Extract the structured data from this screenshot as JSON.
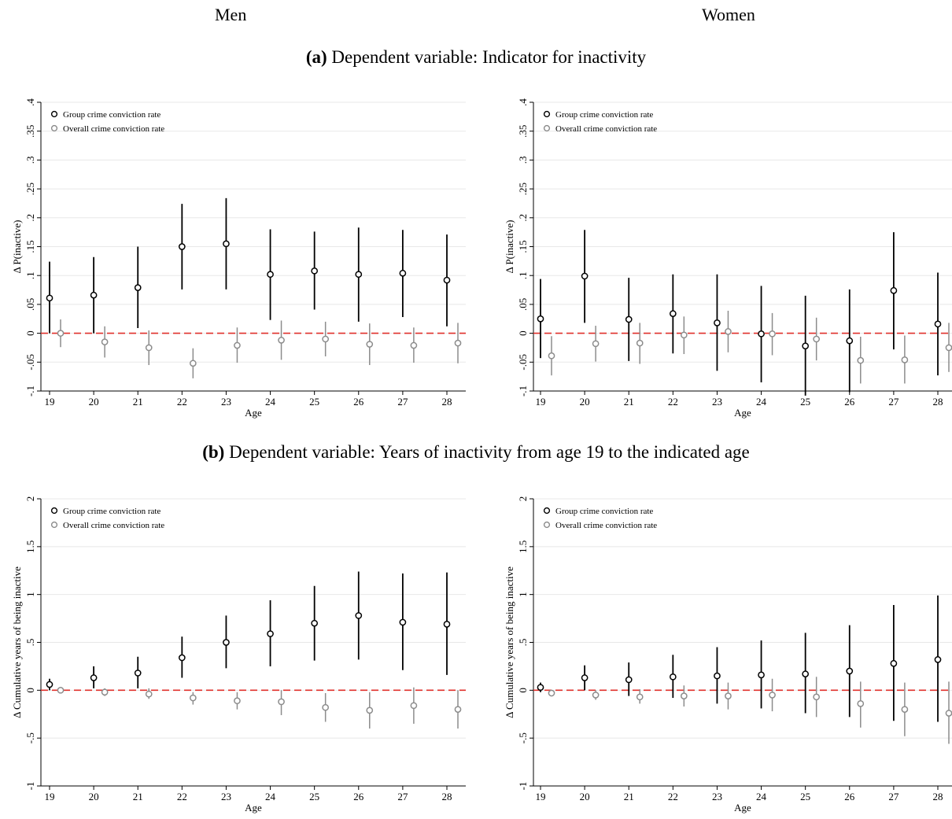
{
  "headers": {
    "men": "Men",
    "women": "Women"
  },
  "panels": {
    "a": {
      "letter": "(a)",
      "text": "Dependent variable: Indicator for inactivity"
    },
    "b": {
      "letter": "(b)",
      "text": "Dependent variable: Years of inactivity from age 19 to the indicated age"
    }
  },
  "colors": {
    "group": "#000000",
    "overall": "#8c8c8c",
    "zero_line": "#e0302b",
    "grid": "#e8e8e8"
  },
  "chart_data": [
    {
      "id": "a-men",
      "type": "scatter",
      "ylabel": "Δ P(inactive)",
      "xlabel": "Age",
      "x": [
        19,
        20,
        21,
        22,
        23,
        24,
        25,
        26,
        27,
        28
      ],
      "ylim": [
        -0.1,
        0.4
      ],
      "yticks": [
        -0.1,
        -0.05,
        0,
        0.05,
        0.1,
        0.15,
        0.2,
        0.25,
        0.3,
        0.35,
        0.4
      ],
      "ytick_labels": [
        "-.1",
        "-.05",
        "0",
        ".05",
        ".1",
        ".15",
        ".2",
        ".25",
        ".3",
        ".35",
        ".4"
      ],
      "legend_position": "top-left",
      "reference_line": 0,
      "series": [
        {
          "name": "Group crime conviction rate",
          "key": "group",
          "values": [
            0.061,
            0.066,
            0.079,
            0.15,
            0.155,
            0.102,
            0.108,
            0.102,
            0.104,
            0.092
          ],
          "ci_low": [
            0.0,
            0.0,
            0.009,
            0.076,
            0.076,
            0.023,
            0.041,
            0.02,
            0.028,
            0.012
          ],
          "ci_high": [
            0.124,
            0.132,
            0.15,
            0.224,
            0.234,
            0.18,
            0.176,
            0.183,
            0.179,
            0.171
          ]
        },
        {
          "name": "Overall crime conviction rate",
          "key": "overall",
          "values": [
            0.0,
            -0.015,
            -0.025,
            -0.052,
            -0.021,
            -0.012,
            -0.01,
            -0.019,
            -0.021,
            -0.017
          ],
          "ci_low": [
            -0.024,
            -0.042,
            -0.055,
            -0.078,
            -0.051,
            -0.046,
            -0.04,
            -0.055,
            -0.051,
            -0.052
          ],
          "ci_high": [
            0.024,
            0.012,
            0.005,
            -0.026,
            0.01,
            0.022,
            0.02,
            0.017,
            0.01,
            0.018
          ]
        }
      ]
    },
    {
      "id": "a-women",
      "type": "scatter",
      "ylabel": "Δ P(inactive)",
      "xlabel": "Age",
      "x": [
        19,
        20,
        21,
        22,
        23,
        24,
        25,
        26,
        27,
        28
      ],
      "ylim": [
        -0.1,
        0.4
      ],
      "yticks": [
        -0.1,
        -0.05,
        0,
        0.05,
        0.1,
        0.15,
        0.2,
        0.25,
        0.3,
        0.35,
        0.4
      ],
      "ytick_labels": [
        "-.1",
        "-.05",
        "0",
        ".05",
        ".1",
        ".15",
        ".2",
        ".25",
        ".3",
        ".35",
        ".4"
      ],
      "legend_position": "top-left",
      "reference_line": 0,
      "series": [
        {
          "name": "Group crime conviction rate",
          "key": "group",
          "values": [
            0.025,
            0.099,
            0.024,
            0.034,
            0.018,
            -0.001,
            -0.022,
            -0.013,
            0.074,
            0.016
          ],
          "ci_low": [
            -0.043,
            0.018,
            -0.048,
            -0.035,
            -0.065,
            -0.085,
            -0.108,
            -0.102,
            -0.028,
            -0.073
          ],
          "ci_high": [
            0.094,
            0.179,
            0.096,
            0.102,
            0.102,
            0.082,
            0.065,
            0.076,
            0.175,
            0.105
          ]
        },
        {
          "name": "Overall crime conviction rate",
          "key": "overall",
          "values": [
            -0.039,
            -0.018,
            -0.017,
            -0.003,
            0.003,
            -0.001,
            -0.01,
            -0.047,
            -0.046,
            -0.025
          ],
          "ci_low": [
            -0.073,
            -0.049,
            -0.053,
            -0.036,
            -0.033,
            -0.038,
            -0.047,
            -0.087,
            -0.087,
            -0.067
          ],
          "ci_high": [
            -0.005,
            0.013,
            0.018,
            0.029,
            0.039,
            0.035,
            0.027,
            -0.006,
            -0.004,
            0.018
          ]
        }
      ]
    },
    {
      "id": "b-men",
      "type": "scatter",
      "ylabel": "Δ Cumulative years of being inactive",
      "xlabel": "Age",
      "x": [
        19,
        20,
        21,
        22,
        23,
        24,
        25,
        26,
        27,
        28
      ],
      "ylim": [
        -1,
        2
      ],
      "yticks": [
        -1,
        -0.5,
        0,
        0.5,
        1,
        1.5,
        2
      ],
      "ytick_labels": [
        "-1",
        "-.5",
        "0",
        ".5",
        "1",
        "1.5",
        "2"
      ],
      "legend_position": "top-left",
      "reference_line": 0,
      "series": [
        {
          "name": "Group crime conviction rate",
          "key": "group",
          "values": [
            0.06,
            0.13,
            0.18,
            0.34,
            0.5,
            0.59,
            0.7,
            0.78,
            0.71,
            0.69
          ],
          "ci_low": [
            0.0,
            0.02,
            0.02,
            0.13,
            0.23,
            0.25,
            0.31,
            0.32,
            0.21,
            0.16
          ],
          "ci_high": [
            0.12,
            0.25,
            0.35,
            0.56,
            0.78,
            0.94,
            1.09,
            1.24,
            1.22,
            1.23
          ]
        },
        {
          "name": "Overall crime conviction rate",
          "key": "overall",
          "values": [
            0.0,
            -0.02,
            -0.04,
            -0.08,
            -0.11,
            -0.12,
            -0.18,
            -0.21,
            -0.16,
            -0.2
          ],
          "ci_low": [
            -0.02,
            -0.06,
            -0.09,
            -0.15,
            -0.2,
            -0.26,
            -0.33,
            -0.4,
            -0.35,
            -0.4
          ],
          "ci_high": [
            0.02,
            0.02,
            0.02,
            -0.02,
            -0.02,
            0.0,
            -0.03,
            -0.02,
            0.03,
            0.0
          ]
        }
      ]
    },
    {
      "id": "b-women",
      "type": "scatter",
      "ylabel": "Δ Cumulative years of being inactive",
      "xlabel": "Age",
      "x": [
        19,
        20,
        21,
        22,
        23,
        24,
        25,
        26,
        27,
        28
      ],
      "ylim": [
        -1,
        2
      ],
      "yticks": [
        -1,
        -0.5,
        0,
        0.5,
        1,
        1.5,
        2
      ],
      "ytick_labels": [
        "-1",
        "-.5",
        "0",
        ".5",
        "1",
        "1.5",
        "2"
      ],
      "legend_position": "top-left",
      "reference_line": 0,
      "series": [
        {
          "name": "Group crime conviction rate",
          "key": "group",
          "values": [
            0.03,
            0.13,
            0.11,
            0.14,
            0.15,
            0.16,
            0.17,
            0.2,
            0.28,
            0.32
          ],
          "ci_low": [
            -0.02,
            0.0,
            -0.06,
            -0.08,
            -0.14,
            -0.19,
            -0.24,
            -0.28,
            -0.32,
            -0.33
          ],
          "ci_high": [
            0.08,
            0.26,
            0.29,
            0.37,
            0.45,
            0.52,
            0.6,
            0.68,
            0.89,
            0.99
          ]
        },
        {
          "name": "Overall crime conviction rate",
          "key": "overall",
          "values": [
            -0.03,
            -0.05,
            -0.07,
            -0.06,
            -0.06,
            -0.05,
            -0.07,
            -0.14,
            -0.2,
            -0.24
          ],
          "ci_low": [
            -0.06,
            -0.1,
            -0.14,
            -0.17,
            -0.2,
            -0.22,
            -0.28,
            -0.39,
            -0.48,
            -0.56
          ],
          "ci_high": [
            0.0,
            0.0,
            0.01,
            0.05,
            0.08,
            0.12,
            0.14,
            0.09,
            0.08,
            0.09
          ]
        }
      ]
    }
  ]
}
